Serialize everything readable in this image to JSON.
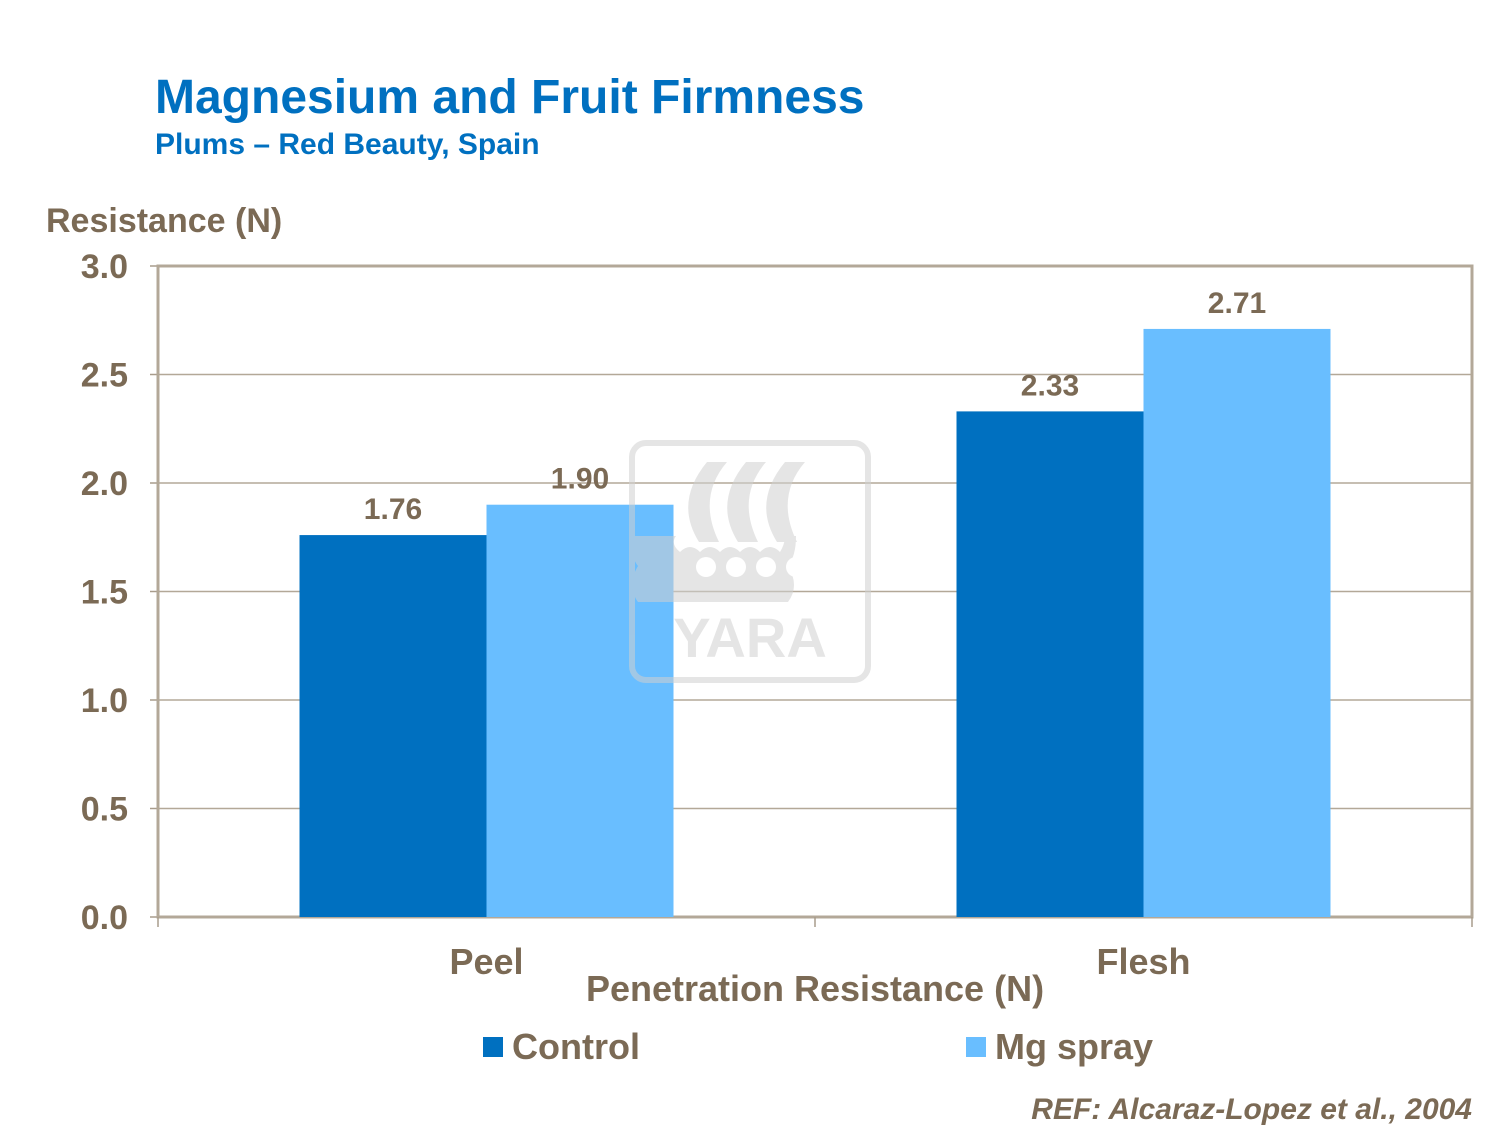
{
  "title": "Magnesium and Fruit Firmness",
  "subtitle": "Plums – Red Beauty, Spain",
  "reference": "REF: Alcaraz-Lopez et al., 2004",
  "watermark": {
    "logo_text": "YARA"
  },
  "colors": {
    "title": "#0070C0",
    "control": "#0070C0",
    "mg_spray": "#69BEFF",
    "text": "#7B6A55"
  },
  "chart_data": {
    "type": "bar",
    "ylabel": "Resistance (N)",
    "xlabel": "Penetration Resistance (N)",
    "categories": [
      "Peel",
      "Flesh"
    ],
    "series": [
      {
        "name": "Control",
        "values": [
          1.76,
          2.33
        ],
        "labels": [
          "1.76",
          "2.33"
        ]
      },
      {
        "name": "Mg spray",
        "values": [
          1.9,
          2.71
        ],
        "labels": [
          "1.90",
          "2.71"
        ]
      }
    ],
    "ylim": [
      0,
      3.0
    ],
    "yticks": [
      "0.0",
      "0.5",
      "1.0",
      "1.5",
      "2.0",
      "2.5",
      "3.0"
    ],
    "grid": true,
    "legend_position": "bottom"
  }
}
